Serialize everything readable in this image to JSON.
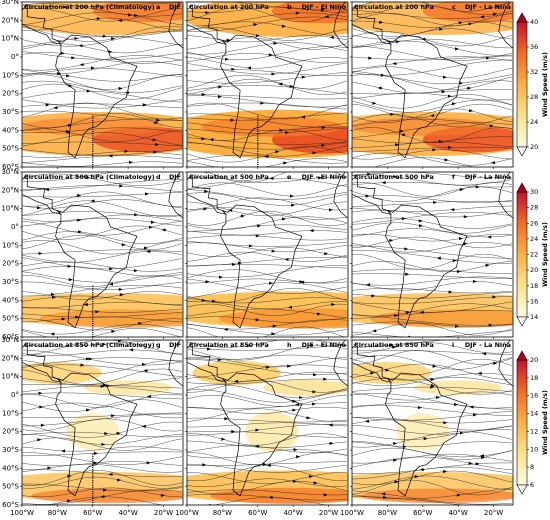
{
  "lat_ticks": [
    {
      "value": 30,
      "label": "30°N"
    },
    {
      "value": 20,
      "label": "20°N"
    },
    {
      "value": 10,
      "label": "10°N"
    },
    {
      "value": 0,
      "label": "0°"
    },
    {
      "value": -10,
      "label": "10°S"
    },
    {
      "value": -20,
      "label": "20°S"
    },
    {
      "value": -30,
      "label": "30°S"
    },
    {
      "value": -40,
      "label": "40°S"
    },
    {
      "value": -50,
      "label": "50°S"
    },
    {
      "value": -60,
      "label": "60°S"
    }
  ],
  "lon_ticks": [
    {
      "value": -100,
      "label": "100°W"
    },
    {
      "value": -80,
      "label": "80°W"
    },
    {
      "value": -60,
      "label": "60°W"
    },
    {
      "value": -40,
      "label": "40°W"
    },
    {
      "value": -20,
      "label": "20°W"
    }
  ],
  "panels": [
    {
      "title": "Circulation at 200 hPa (Climatology)",
      "letter": "a",
      "season": "DJF"
    },
    {
      "title": "Circulation at 200 hPa",
      "letter": "b",
      "season": "DJF - El Niño"
    },
    {
      "title": "Circulation at 200 hPa",
      "letter": "c",
      "season": "DJF - La Niña"
    },
    {
      "title": "Circulation at 500 hPa (Climatology)",
      "letter": "d",
      "season": "DJF"
    },
    {
      "title": "Circulation at 500 hPa",
      "letter": "e",
      "season": "DJF - El Niño"
    },
    {
      "title": "Circulation at 500 hPa",
      "letter": "f",
      "season": "DJF - La Niña"
    },
    {
      "title": "Circulation at 850 hPa (Climatology)",
      "letter": "g",
      "season": "DJF"
    },
    {
      "title": "Circulation at 850 hPa",
      "letter": "h",
      "season": "DJF - El Niño"
    },
    {
      "title": "Circulation at 850 hPa",
      "letter": "i",
      "season": "DJF - La Niña"
    }
  ],
  "colorbars": [
    {
      "label": "Wind Speed (m/s)",
      "lim": [
        20,
        40
      ],
      "ticks": [
        20,
        24,
        28,
        32,
        36,
        40
      ]
    },
    {
      "label": "Wind Speed (m/s)",
      "lim": [
        14,
        30
      ],
      "ticks": [
        14,
        16,
        18,
        20,
        22,
        24,
        26,
        28,
        30
      ]
    },
    {
      "label": "Wind Speed (m/s)",
      "lim": [
        6,
        20
      ],
      "ticks": [
        6,
        8,
        10,
        12,
        14,
        16,
        18,
        20
      ]
    }
  ]
}
